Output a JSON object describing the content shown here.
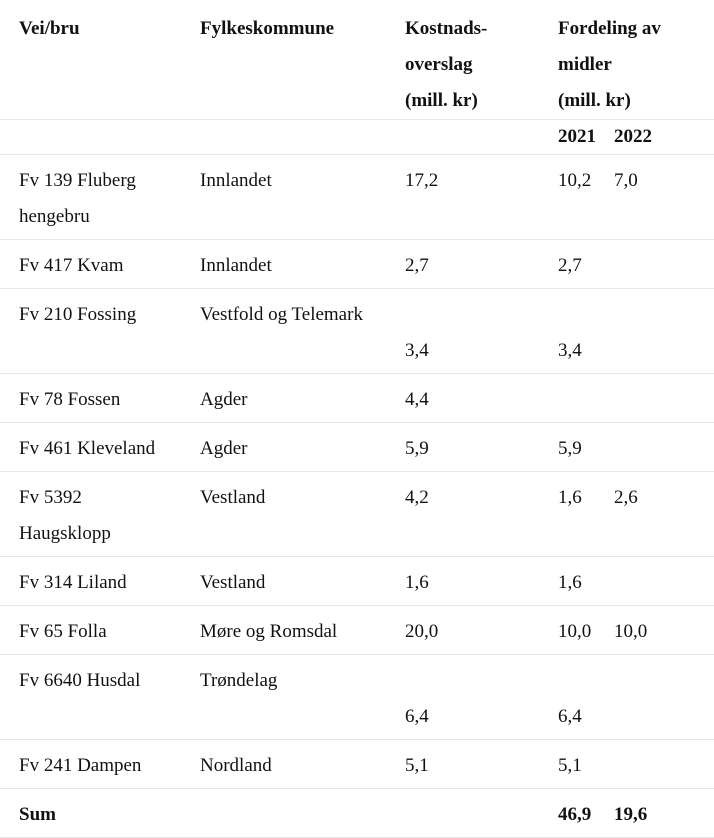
{
  "header": {
    "col1": "Vei/bru",
    "col2": "Fylkeskommune",
    "col3_l1": "Kostnads-",
    "col3_l2": "overslag",
    "col3_l3": "(mill. kr)",
    "col4_l1": "Fordeling av",
    "col4_l2": "midler",
    "col4_l3": "(mill. kr)",
    "year1": "2021",
    "year2": "2022"
  },
  "rows": [
    {
      "vei_l1": "Fv 139 Fluberg",
      "vei_l2": "hengebru",
      "fylke": "Innlandet",
      "kostnad": "17,2",
      "y2021": "10,2",
      "y2022": "7,0"
    },
    {
      "vei": "Fv 417 Kvam",
      "fylke": "Innlandet",
      "kostnad": "2,7",
      "y2021": "2,7",
      "y2022": ""
    },
    {
      "vei": "Fv 210 Fossing",
      "fylke": "Vestfold og Telemark",
      "kostnad": "3,4",
      "y2021": "3,4",
      "y2022": ""
    },
    {
      "vei": "Fv 78 Fossen",
      "fylke": "Agder",
      "kostnad": "4,4",
      "y2021": "",
      "y2022": ""
    },
    {
      "vei": "Fv 461 Kleveland",
      "fylke": "Agder",
      "kostnad": "5,9",
      "y2021": "5,9",
      "y2022": ""
    },
    {
      "vei_l1": "Fv 5392",
      "vei_l2": "Haugsklopp",
      "fylke": "Vestland",
      "kostnad": "4,2",
      "y2021": "1,6",
      "y2022": "2,6"
    },
    {
      "vei": "Fv 314 Liland",
      "fylke": "Vestland",
      "kostnad": "1,6",
      "y2021": "1,6",
      "y2022": ""
    },
    {
      "vei": "Fv 65 Folla",
      "fylke": "Møre og Romsdal",
      "kostnad": "20,0",
      "y2021": "10,0",
      "y2022": "10,0"
    },
    {
      "vei": "Fv 6640 Husdal",
      "fylke": "Trøndelag",
      "kostnad": "6,4",
      "y2021": "6,4",
      "y2022": ""
    },
    {
      "vei": "Fv 241 Dampen",
      "fylke": "Nordland",
      "kostnad": "5,1",
      "y2021": "5,1",
      "y2022": ""
    }
  ],
  "sum": {
    "label": "Sum",
    "y2021": "46,9",
    "y2022": "19,6"
  }
}
